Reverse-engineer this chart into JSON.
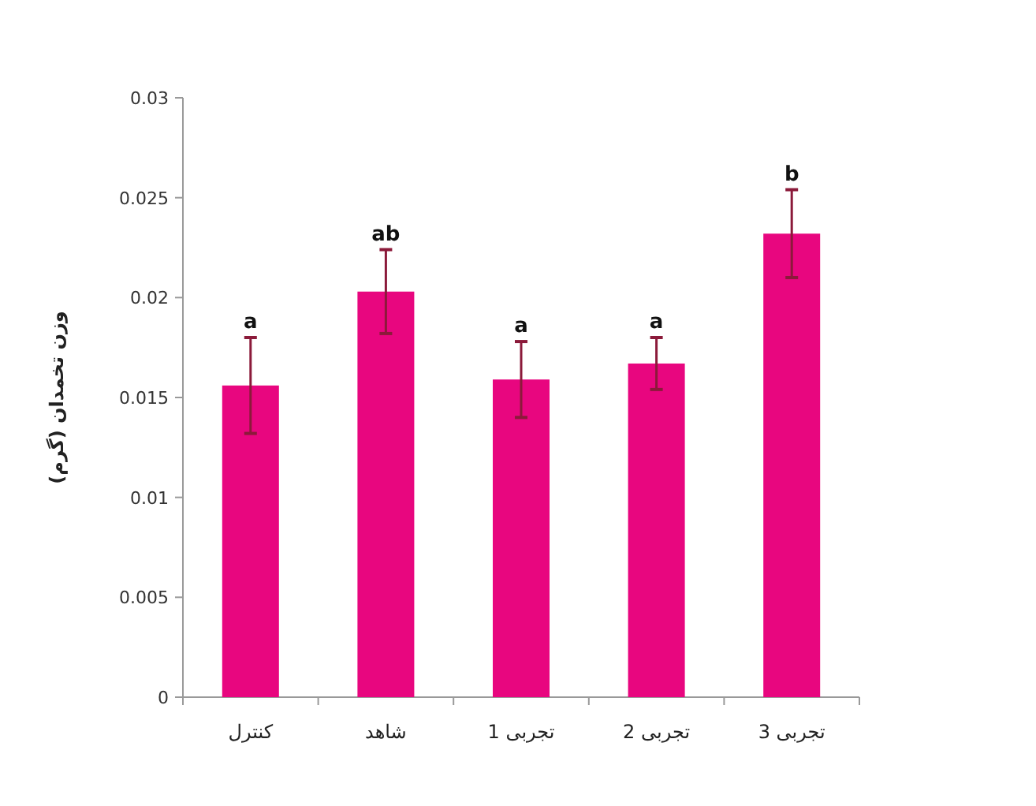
{
  "chart_data": {
    "type": "bar",
    "ylabel": "وزن تخمدان (گرم)",
    "categories": [
      "کنترل",
      "شاهد",
      "تجربی 1",
      "تجربی 2",
      "تجربی 3"
    ],
    "values": [
      0.0156,
      0.0203,
      0.0159,
      0.0167,
      0.0232
    ],
    "errors": [
      0.0024,
      0.0021,
      0.0019,
      0.0013,
      0.0022
    ],
    "value_labels": [
      "a",
      "ab",
      "a",
      "a",
      "b"
    ],
    "color": "#e8067f",
    "ylim": [
      0,
      0.03
    ],
    "yticks": [
      0,
      0.005,
      0.01,
      0.015,
      0.02,
      0.025,
      0.03
    ],
    "grid": false
  }
}
